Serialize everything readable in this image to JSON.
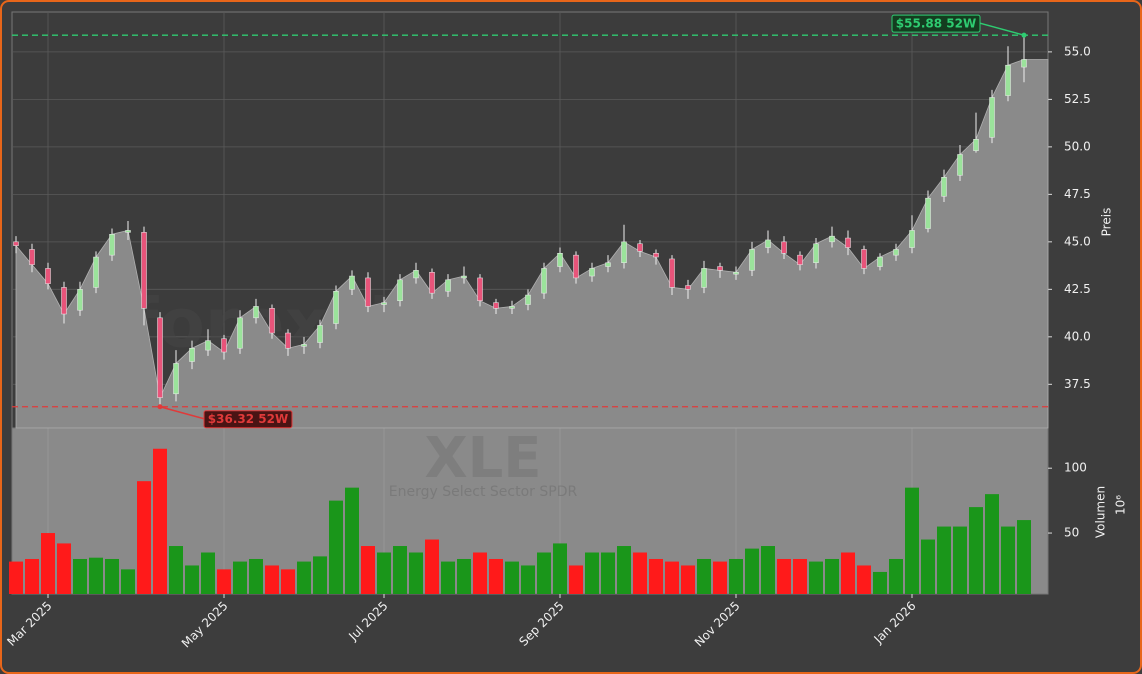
{
  "chart_data": [
    {
      "type": "candlestick",
      "ylabel": "Preis",
      "watermark": "forexsignale.trade",
      "ylim": [
        35.2,
        57.1
      ],
      "yticks": [
        37.5,
        {
          "value": 40,
          "label": "40.0"
        },
        42.5,
        {
          "value": 45,
          "label": "45.0"
        },
        47.5,
        {
          "value": 50,
          "label": "50.0"
        },
        52.5,
        {
          "value": 55,
          "label": "55.0"
        }
      ],
      "grid": true,
      "up_color": "#9be39b",
      "down_color": "#e8547a",
      "area_color": "#8a8a8a",
      "open": [
        45.0,
        44.6,
        43.6,
        42.6,
        41.4,
        42.6,
        44.3,
        45.5,
        45.5,
        41.0,
        37.0,
        38.7,
        39.3,
        39.9,
        39.4,
        41.0,
        41.5,
        40.2,
        39.5,
        39.7,
        40.7,
        42.5,
        43.1,
        41.7,
        41.9,
        43.1,
        43.4,
        42.4,
        43.1,
        43.1,
        41.8,
        41.5,
        41.7,
        42.3,
        43.7,
        44.3,
        43.2,
        43.7,
        43.9,
        44.9,
        44.4,
        44.1,
        42.7,
        42.6,
        43.7,
        43.3,
        43.5,
        44.7,
        45.0,
        44.3,
        43.9,
        45.0,
        45.2,
        44.6,
        43.7,
        44.3,
        44.7,
        45.7,
        47.4,
        48.5,
        49.8,
        50.5,
        52.7,
        54.2
      ],
      "high": [
        45.3,
        44.9,
        43.9,
        42.9,
        42.9,
        44.5,
        45.7,
        46.1,
        45.8,
        41.3,
        39.3,
        39.8,
        40.4,
        40.1,
        41.4,
        42.0,
        41.7,
        40.4,
        40.0,
        40.9,
        42.7,
        43.5,
        43.4,
        42.1,
        43.3,
        43.9,
        43.6,
        43.3,
        43.7,
        43.3,
        42.0,
        41.9,
        42.5,
        43.9,
        44.7,
        44.5,
        43.9,
        44.3,
        45.9,
        45.1,
        44.6,
        44.3,
        43.0,
        44.0,
        43.9,
        43.7,
        45.0,
        45.6,
        45.3,
        44.5,
        45.2,
        45.8,
        45.6,
        44.8,
        44.4,
        44.9,
        46.4,
        47.7,
        48.8,
        50.1,
        51.8,
        53.0,
        55.3,
        55.88
      ],
      "low": [
        44.4,
        43.4,
        42.5,
        40.7,
        41.1,
        42.3,
        44.0,
        45.1,
        40.6,
        36.32,
        36.6,
        38.3,
        39.0,
        38.8,
        39.1,
        40.7,
        39.9,
        39.0,
        39.1,
        39.4,
        40.4,
        42.2,
        41.3,
        41.3,
        41.6,
        42.8,
        42.0,
        42.1,
        42.8,
        41.6,
        41.2,
        41.2,
        41.4,
        42.0,
        43.4,
        42.8,
        42.9,
        43.4,
        43.6,
        44.2,
        43.8,
        42.2,
        42.0,
        42.3,
        43.1,
        43.0,
        43.2,
        44.4,
        44.1,
        43.5,
        43.6,
        44.7,
        44.3,
        43.3,
        43.5,
        44.0,
        44.4,
        45.5,
        47.1,
        48.2,
        49.7,
        50.2,
        52.4,
        53.4
      ],
      "close": [
        44.8,
        43.8,
        42.8,
        41.2,
        42.5,
        44.2,
        45.4,
        45.6,
        41.5,
        36.8,
        38.6,
        39.4,
        39.8,
        39.2,
        41.0,
        41.6,
        40.2,
        39.4,
        39.6,
        40.6,
        42.4,
        43.2,
        41.6,
        41.8,
        43.0,
        43.5,
        42.3,
        43.0,
        43.2,
        41.9,
        41.5,
        41.6,
        42.2,
        43.6,
        44.4,
        43.1,
        43.6,
        43.9,
        45.0,
        44.5,
        44.2,
        42.6,
        42.5,
        43.6,
        43.5,
        43.4,
        44.6,
        45.1,
        44.4,
        43.8,
        44.9,
        45.3,
        44.7,
        43.6,
        44.2,
        44.6,
        45.6,
        47.3,
        48.4,
        49.6,
        50.4,
        52.6,
        54.3,
        54.6
      ],
      "annotations": [
        {
          "value": 55.88,
          "label": "$55.88 52W",
          "color": "#2ecc71",
          "of": "high"
        },
        {
          "value": 36.32,
          "label": "$36.32 52W",
          "color": "#e03a3a",
          "of": "low"
        }
      ]
    },
    {
      "type": "bar",
      "ylabel": "Volumen",
      "yunit": "10⁶",
      "title": "XLE",
      "subtitle": "Energy Select Sector SPDR",
      "ylim": [
        3,
        131
      ],
      "yticks": [
        50,
        100
      ],
      "grid": true,
      "up_color": "#1a961a",
      "down_color": "#ff1a1a",
      "categories": [
        null,
        null,
        "Mar 2025",
        null,
        null,
        null,
        null,
        null,
        null,
        null,
        null,
        null,
        null,
        "May 2025",
        null,
        null,
        null,
        null,
        null,
        null,
        null,
        null,
        null,
        "Jul 2025",
        null,
        null,
        null,
        null,
        null,
        null,
        null,
        null,
        null,
        null,
        "Sep 2025",
        null,
        null,
        null,
        null,
        null,
        null,
        null,
        null,
        null,
        null,
        "Nov 2025",
        null,
        null,
        null,
        null,
        null,
        null,
        null,
        null,
        null,
        null,
        "Jan 2026",
        null,
        null,
        null,
        null,
        null,
        null,
        null
      ],
      "values": [
        28,
        30,
        50,
        42,
        30,
        31,
        30,
        22,
        90,
        115,
        40,
        25,
        35,
        22,
        28,
        30,
        25,
        22,
        28,
        32,
        75,
        85,
        40,
        35,
        40,
        35,
        45,
        28,
        30,
        35,
        30,
        28,
        25,
        35,
        42,
        25,
        35,
        35,
        40,
        35,
        30,
        28,
        25,
        30,
        28,
        30,
        38,
        40,
        30,
        30,
        28,
        30,
        35,
        25,
        20,
        30,
        85,
        45,
        55,
        55,
        70,
        80,
        55,
        60
      ]
    }
  ]
}
